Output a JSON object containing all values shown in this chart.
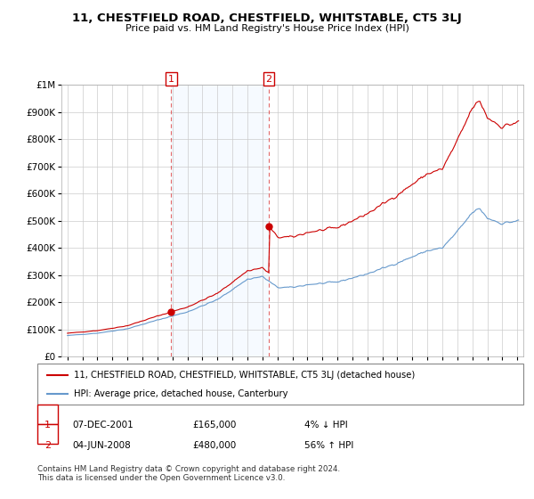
{
  "title": "11, CHESTFIELD ROAD, CHESTFIELD, WHITSTABLE, CT5 3LJ",
  "subtitle": "Price paid vs. HM Land Registry's House Price Index (HPI)",
  "ylim": [
    0,
    1000000
  ],
  "yticks": [
    0,
    100000,
    200000,
    300000,
    400000,
    500000,
    600000,
    700000,
    800000,
    900000,
    1000000
  ],
  "ytick_labels": [
    "£0",
    "£100K",
    "£200K",
    "£300K",
    "£400K",
    "£500K",
    "£600K",
    "£700K",
    "£800K",
    "£900K",
    "£1M"
  ],
  "hpi_color": "#6699cc",
  "price_color": "#cc0000",
  "shade_color": "#ddeeff",
  "sale1_date": 2001.92,
  "sale1_price": 165000,
  "sale2_date": 2008.42,
  "sale2_price": 480000,
  "legend_line1": "11, CHESTFIELD ROAD, CHESTFIELD, WHITSTABLE, CT5 3LJ (detached house)",
  "legend_line2": "HPI: Average price, detached house, Canterbury",
  "footer": "Contains HM Land Registry data © Crown copyright and database right 2024.\nThis data is licensed under the Open Government Licence v3.0."
}
